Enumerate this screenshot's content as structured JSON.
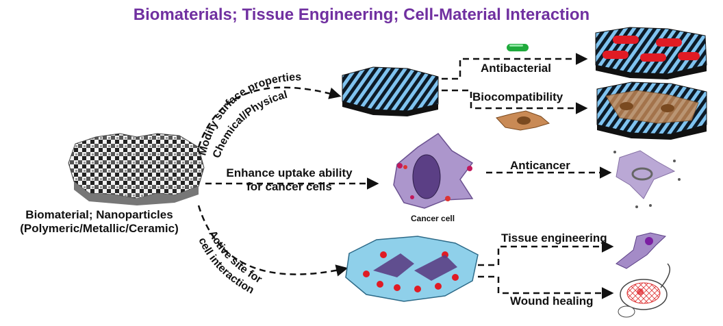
{
  "title": "Biomaterials; Tissue Engineering; Cell-Material Interaction",
  "colors": {
    "title": "#7030a0",
    "arrow": "#111111",
    "scaffold_blue": "#7fc3f0",
    "bacteria_green": "#1faa3c",
    "bacteria_red": "#e01b24",
    "cell_orange": "#c98a55",
    "cancer_cell": "#a48bc7",
    "wound_pad": "#8fd0ea"
  },
  "source": {
    "label_line1": "Biomaterial; Nanoparticles",
    "label_line2": "(Polymeric/Metallic/Ceramic)"
  },
  "routes": {
    "surface_line1": "Modify surface properties",
    "surface_line2": "Chemical/Physical",
    "uptake_line1": "Enhance uptake ability",
    "uptake_line2": "for cancer cells",
    "active_line1": "Active site for",
    "active_line2": "cell interaction"
  },
  "outcomes": {
    "antibacterial": "Antibacterial",
    "biocompatibility": "Biocompatibility",
    "anticancer": "Anticancer",
    "tissue_engineering": "Tissue engineering",
    "wound_healing": "Wound healing"
  },
  "cancer_cell_caption": "Cancer cell"
}
